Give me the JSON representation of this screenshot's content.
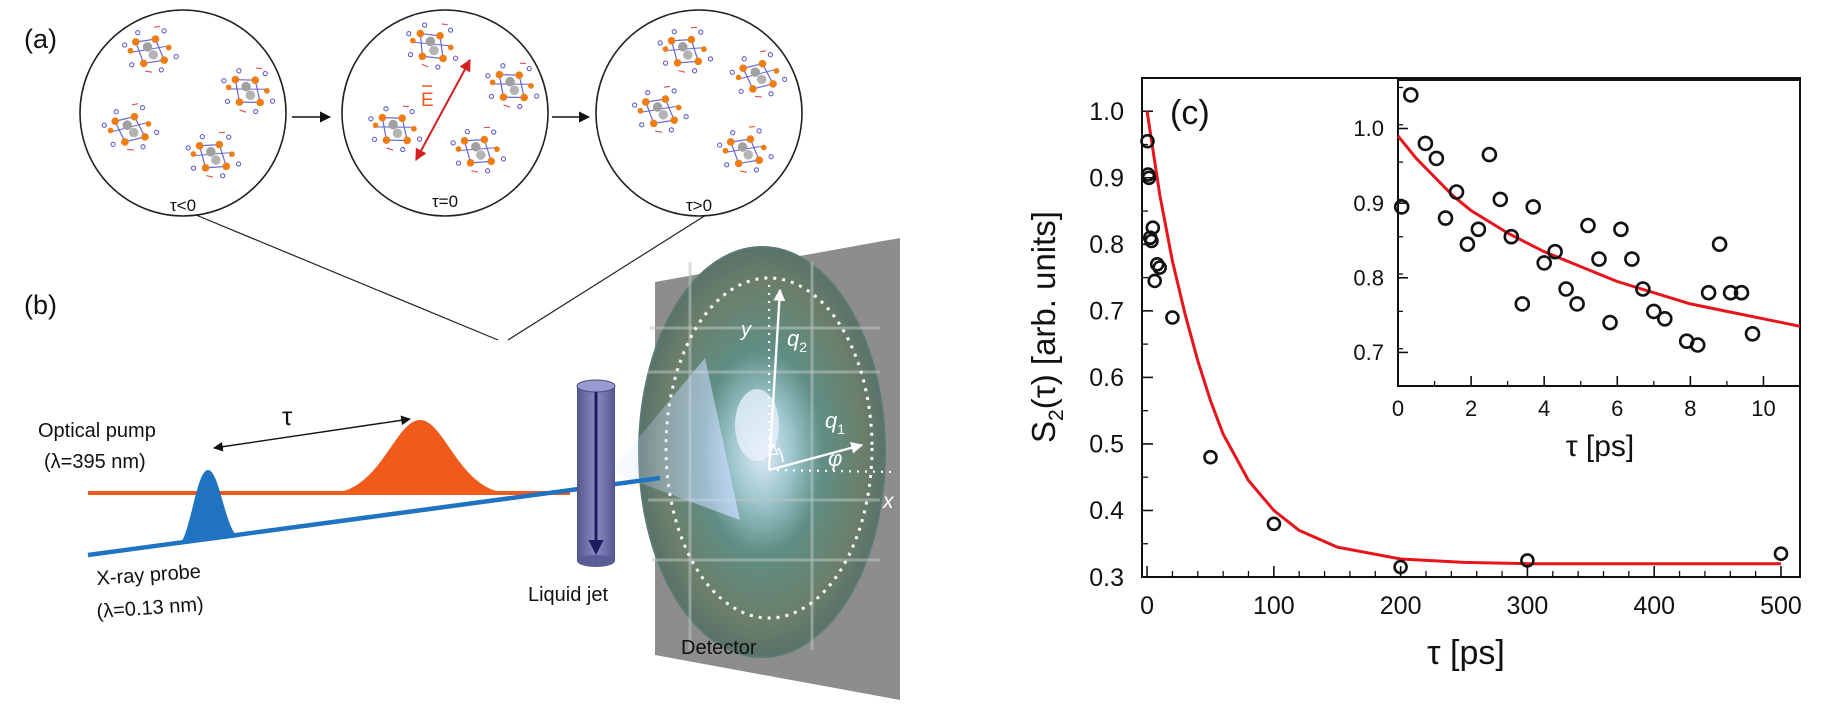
{
  "panel_labels": {
    "a": "(a)",
    "b": "(b)",
    "c": "(c)"
  },
  "panel_a": {
    "circles": [
      {
        "label": "τ<0"
      },
      {
        "label": "τ=0",
        "field_label": "E"
      },
      {
        "label": "τ>0"
      }
    ]
  },
  "panel_b": {
    "pump_label": "Optical pump",
    "pump_wavelength": "(λ=395 nm)",
    "delay_label": "τ",
    "probe_label": "X-ray probe",
    "probe_wavelength": "(λ=0.13 nm)",
    "jet_label": "Liquid jet",
    "detector_label": "Detector",
    "axis_x": "x",
    "axis_y": "y",
    "q1": "q",
    "q1_sub": "1",
    "q2": "q",
    "q2_sub": "2",
    "phi": "φ",
    "delta": "Δ"
  },
  "colors": {
    "pump": "#f05a1a",
    "probe": "#1f73c0",
    "fit_line": "#e8141c",
    "molecule_orange": "#ef7d14",
    "molecule_blue": "#6a6ad8",
    "jet": "#6f6fae"
  },
  "chart_data": [
    {
      "type": "scatter",
      "xlabel": "τ [ps]",
      "ylabel": "S2(τ) [arb. units]",
      "ylabel_main": "S",
      "ylabel_sub": "2",
      "ylabel_rest": "(τ) [arb. units]",
      "xlim": [
        -4,
        515
      ],
      "ylim": [
        0.3,
        1.05
      ],
      "xticks": [
        0,
        100,
        200,
        300,
        400,
        500
      ],
      "yticks": [
        0.3,
        0.4,
        0.5,
        0.6,
        0.7,
        0.8,
        0.9,
        1.0
      ],
      "ytick_labels": [
        "0.3",
        "0.4",
        "0.5",
        "0.6",
        "0.7",
        "0.8",
        "0.9",
        "1.0"
      ],
      "series": [
        {
          "kind": "markers",
          "x": [
            0.3,
            0.8,
            1.5,
            2.5,
            3.5,
            4.5,
            6,
            8,
            10,
            20,
            50,
            100,
            200,
            300,
            500
          ],
          "y": [
            0.955,
            0.905,
            0.9,
            0.81,
            0.805,
            0.825,
            0.745,
            0.77,
            0.765,
            0.69,
            0.48,
            0.38,
            0.315,
            0.325,
            0.335
          ]
        },
        {
          "kind": "fit",
          "x": [
            0,
            10,
            20,
            30,
            40,
            50,
            60,
            80,
            100,
            120,
            150,
            200,
            250,
            300,
            400,
            500
          ],
          "y": [
            1.0,
            0.875,
            0.775,
            0.695,
            0.625,
            0.565,
            0.515,
            0.445,
            0.4,
            0.37,
            0.345,
            0.327,
            0.322,
            0.32,
            0.32,
            0.32
          ]
        }
      ]
    },
    {
      "type": "scatter",
      "inset": true,
      "xlabel": "τ [ps]",
      "xlim": [
        0,
        11
      ],
      "ylim": [
        0.655,
        1.065
      ],
      "xticks": [
        0,
        2,
        4,
        6,
        8,
        10
      ],
      "yticks": [
        0.7,
        0.8,
        0.9,
        1.0
      ],
      "ytick_labels": [
        "0.7",
        "0.8",
        "0.9",
        "1.0"
      ],
      "series": [
        {
          "kind": "markers",
          "x": [
            0.1,
            0.35,
            0.75,
            1.05,
            1.3,
            1.6,
            1.9,
            2.2,
            2.5,
            2.8,
            3.1,
            3.4,
            3.7,
            4.0,
            4.3,
            4.6,
            4.9,
            5.2,
            5.5,
            5.8,
            6.1,
            6.4,
            6.7,
            7.0,
            7.3,
            7.9,
            8.2,
            8.5,
            8.8,
            9.1,
            9.4,
            9.7
          ],
          "y": [
            0.895,
            1.045,
            0.98,
            0.96,
            0.88,
            0.915,
            0.845,
            0.865,
            0.965,
            0.905,
            0.855,
            0.765,
            0.895,
            0.82,
            0.835,
            0.785,
            0.765,
            0.87,
            0.825,
            0.74,
            0.865,
            0.825,
            0.785,
            0.755,
            0.745,
            0.715,
            0.71,
            0.78,
            0.845,
            0.78,
            0.78,
            0.725
          ]
        },
        {
          "kind": "fit",
          "x": [
            0,
            0.5,
            1,
            1.5,
            2,
            3,
            4,
            5,
            6,
            7,
            8,
            9,
            10,
            11
          ],
          "y": [
            0.99,
            0.96,
            0.935,
            0.91,
            0.89,
            0.86,
            0.835,
            0.815,
            0.795,
            0.78,
            0.765,
            0.755,
            0.745,
            0.735
          ]
        }
      ]
    }
  ]
}
